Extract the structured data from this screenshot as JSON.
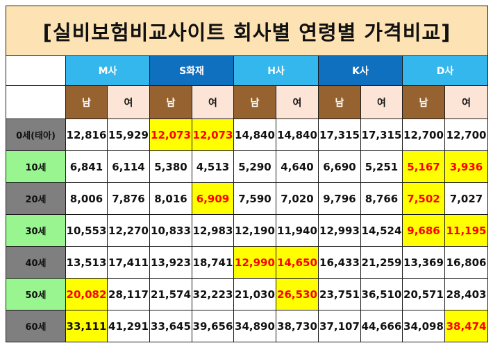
{
  "title": "[실비보험비교사이트 회사별 연령별 가격비교]",
  "companies": [
    {
      "name": "M사",
      "style": "light"
    },
    {
      "name": "S화재",
      "style": "dark"
    },
    {
      "name": "H사",
      "style": "light"
    },
    {
      "name": "K사",
      "style": "dark"
    },
    {
      "name": "D사",
      "style": "light"
    }
  ],
  "gender_labels": {
    "male": "남",
    "female": "여"
  },
  "colors": {
    "title_bg": "#fde2b3",
    "company_light": "#33b7ec",
    "company_dark": "#0f70c0",
    "male_header": "#966330",
    "female_header": "#fce4d6",
    "age_gray": "#7f7f7f",
    "age_green": "#99f58f",
    "highlight_bg": "#ffff00",
    "highlight_text": "#ff0000"
  },
  "rows": [
    {
      "age": "0세(태아)",
      "age_style": "gray",
      "values": [
        "12,816",
        "15,929",
        "12,073",
        "12,073",
        "14,840",
        "14,840",
        "17,315",
        "17,315",
        "12,700",
        "12,700"
      ],
      "highlight": [
        false,
        false,
        true,
        true,
        false,
        false,
        false,
        false,
        false,
        false
      ],
      "red_text": [
        false,
        false,
        true,
        true,
        false,
        false,
        false,
        false,
        false,
        false
      ]
    },
    {
      "age": "10세",
      "age_style": "green",
      "values": [
        "6,841",
        "6,114",
        "5,380",
        "4,513",
        "5,290",
        "4,640",
        "6,690",
        "5,251",
        "5,167",
        "3,936"
      ],
      "highlight": [
        false,
        false,
        false,
        false,
        false,
        false,
        false,
        false,
        true,
        true
      ],
      "red_text": [
        false,
        false,
        false,
        false,
        false,
        false,
        false,
        false,
        true,
        true
      ]
    },
    {
      "age": "20세",
      "age_style": "gray",
      "values": [
        "8,006",
        "7,876",
        "8,016",
        "6,909",
        "7,590",
        "7,020",
        "9,796",
        "8,766",
        "7,502",
        "7,027"
      ],
      "highlight": [
        false,
        false,
        false,
        true,
        false,
        false,
        false,
        false,
        true,
        false
      ],
      "red_text": [
        false,
        false,
        false,
        true,
        false,
        false,
        false,
        false,
        true,
        false
      ]
    },
    {
      "age": "30세",
      "age_style": "green",
      "values": [
        "10,553",
        "12,270",
        "10,833",
        "12,983",
        "12,190",
        "11,940",
        "12,993",
        "14,524",
        "9,686",
        "11,195"
      ],
      "highlight": [
        false,
        false,
        false,
        false,
        false,
        false,
        false,
        false,
        true,
        true
      ],
      "red_text": [
        false,
        false,
        false,
        false,
        false,
        false,
        false,
        false,
        true,
        true
      ]
    },
    {
      "age": "40세",
      "age_style": "gray",
      "values": [
        "13,513",
        "17,411",
        "13,923",
        "18,741",
        "12,990",
        "14,650",
        "16,433",
        "21,259",
        "13,369",
        "16,806"
      ],
      "highlight": [
        false,
        false,
        false,
        false,
        true,
        true,
        false,
        false,
        false,
        false
      ],
      "red_text": [
        false,
        false,
        false,
        false,
        true,
        true,
        false,
        false,
        false,
        false
      ]
    },
    {
      "age": "50세",
      "age_style": "green",
      "values": [
        "20,082",
        "28,117",
        "21,574",
        "32,223",
        "21,030",
        "26,530",
        "23,751",
        "36,510",
        "20,571",
        "28,403"
      ],
      "highlight": [
        true,
        false,
        false,
        false,
        false,
        true,
        false,
        false,
        false,
        false
      ],
      "red_text": [
        true,
        false,
        false,
        false,
        false,
        true,
        false,
        false,
        false,
        false
      ]
    },
    {
      "age": "60세",
      "age_style": "gray",
      "values": [
        "33,111",
        "41,291",
        "33,645",
        "39,656",
        "34,890",
        "38,730",
        "37,107",
        "44,666",
        "34,098",
        "38,474"
      ],
      "highlight": [
        true,
        false,
        false,
        false,
        false,
        false,
        false,
        false,
        false,
        true
      ],
      "red_text": [
        false,
        false,
        false,
        false,
        false,
        false,
        false,
        false,
        false,
        true
      ]
    }
  ]
}
